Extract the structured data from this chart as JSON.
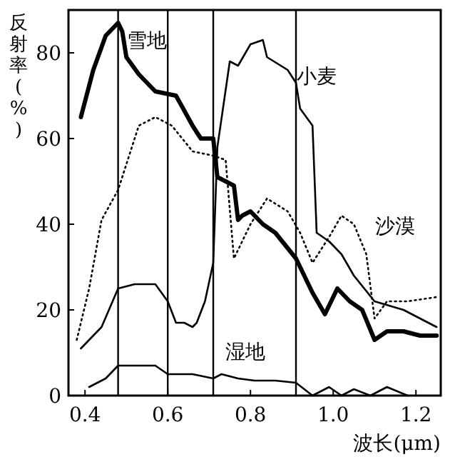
{
  "chart_data": {
    "type": "line",
    "xlabel": "波长(μm)",
    "ylabel": "反射率(%)",
    "xlim": [
      0.36,
      1.26
    ],
    "ylim": [
      0,
      90
    ],
    "xticks": [
      {
        "value": 0.4,
        "label": "0.4"
      },
      {
        "value": 0.6,
        "label": "0.6"
      },
      {
        "value": 0.8,
        "label": "0.8"
      },
      {
        "value": 1.0,
        "label": "1.0"
      },
      {
        "value": 1.2,
        "label": "1.2"
      }
    ],
    "yticks": [
      0,
      20,
      40,
      60,
      80
    ],
    "grid": false,
    "marker": "none",
    "series": [
      {
        "name": "雪地",
        "color": "#000000",
        "line_style": "solid",
        "x": [
          0.39,
          0.42,
          0.45,
          0.48,
          0.49,
          0.5,
          0.53,
          0.57,
          0.62,
          0.66,
          0.68,
          0.71,
          0.72,
          0.74,
          0.76,
          0.77,
          0.78,
          0.8,
          0.83,
          0.86,
          0.91,
          0.95,
          0.98,
          1.01,
          1.04,
          1.07,
          1.1,
          1.13,
          1.17,
          1.21,
          1.25
        ],
        "values": [
          65,
          76,
          84,
          87,
          85,
          79,
          75,
          71,
          70,
          63,
          60,
          60,
          51,
          50,
          49,
          41,
          42,
          43,
          40,
          38,
          32,
          24,
          19,
          25,
          22,
          20,
          13,
          15,
          15,
          14,
          14
        ]
      },
      {
        "name": "小麦",
        "color": "#000000",
        "line_style": "solid",
        "x": [
          0.39,
          0.44,
          0.48,
          0.52,
          0.57,
          0.6,
          0.62,
          0.64,
          0.66,
          0.67,
          0.69,
          0.71,
          0.72,
          0.75,
          0.77,
          0.8,
          0.83,
          0.84,
          0.89,
          0.91,
          0.92,
          0.95,
          0.96,
          0.99,
          1.02,
          1.05,
          1.1,
          1.17,
          1.25
        ],
        "values": [
          11,
          16,
          25,
          26,
          26,
          22,
          17,
          17,
          16,
          17,
          22,
          31,
          58,
          78,
          77,
          82,
          83,
          79,
          76,
          73,
          67,
          63,
          38,
          36,
          33,
          28,
          22,
          20,
          16
        ]
      },
      {
        "name": "沙漠",
        "color": "#000000",
        "line_style": "dotted",
        "x": [
          0.38,
          0.41,
          0.44,
          0.48,
          0.53,
          0.57,
          0.61,
          0.66,
          0.71,
          0.74,
          0.76,
          0.78,
          0.8,
          0.84,
          0.89,
          0.92,
          0.95,
          0.99,
          1.02,
          1.05,
          1.08,
          1.1,
          1.13,
          1.18,
          1.25
        ],
        "values": [
          13,
          25,
          41,
          48,
          63,
          65,
          63,
          57,
          56,
          55,
          32,
          36,
          40,
          46,
          43,
          38,
          31,
          37,
          42,
          40,
          33,
          18,
          22,
          22,
          23
        ]
      },
      {
        "name": "湿地",
        "color": "#000000",
        "line_style": "solid",
        "x": [
          0.41,
          0.45,
          0.48,
          0.57,
          0.6,
          0.66,
          0.71,
          0.73,
          0.77,
          0.81,
          0.86,
          0.91,
          0.95,
          0.99,
          1.02,
          1.05,
          1.09,
          1.13,
          1.18
        ],
        "values": [
          2,
          4,
          7,
          7,
          5,
          5,
          4,
          5,
          4,
          3.5,
          3.5,
          3,
          0,
          2,
          0,
          1.5,
          0,
          2,
          0
        ]
      }
    ],
    "ref_lines": [
      {
        "axis": "x",
        "value": 0.48,
        "color": "#000000"
      },
      {
        "axis": "x",
        "value": 0.6,
        "color": "#000000"
      },
      {
        "axis": "x",
        "value": 0.71,
        "color": "#000000"
      },
      {
        "axis": "x",
        "value": 0.91,
        "color": "#000000"
      }
    ]
  }
}
